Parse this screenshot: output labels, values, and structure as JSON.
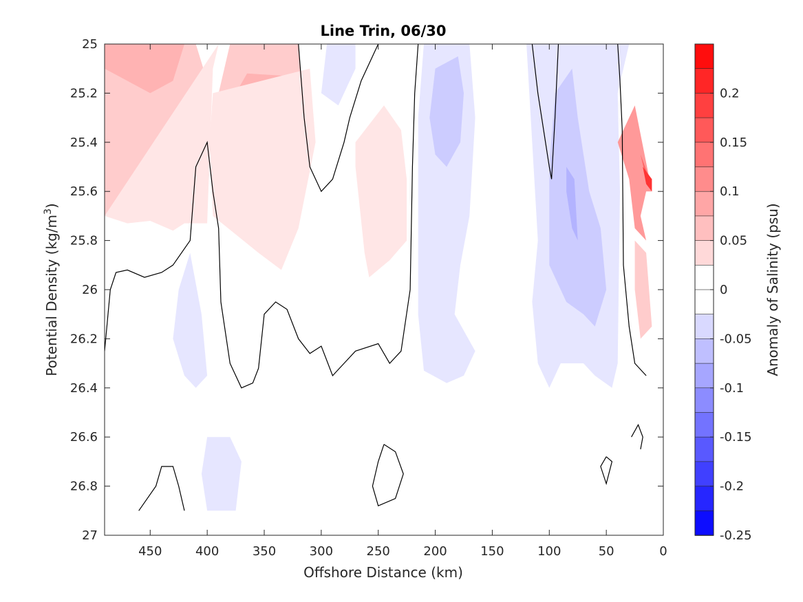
{
  "chart_data": {
    "type": "contour",
    "title": "Line Trin, 06/30",
    "xlabel": "Offshore Distance (km)",
    "ylabel": {
      "text": "Potential Density (kg/m",
      "superscript": "3",
      "suffix": ")"
    },
    "xlim": [
      490,
      0
    ],
    "x_reversed": true,
    "ylim": [
      25,
      27
    ],
    "y_reversed": true,
    "x_ticks": [
      "450",
      "400",
      "350",
      "300",
      "250",
      "200",
      "150",
      "100",
      "50",
      "0"
    ],
    "y_ticks": [
      "25",
      "25.2",
      "25.4",
      "25.6",
      "25.8",
      "26",
      "26.2",
      "26.4",
      "26.6",
      "26.8",
      "27"
    ],
    "grid": false,
    "colorbar": {
      "label": "Anomaly of Salinity (psu)",
      "range": [
        -0.25,
        0.25
      ],
      "step": 0.025,
      "tick_values": [
        0.2,
        0.15,
        0.1,
        0.05,
        0,
        -0.05,
        -0.1,
        -0.15,
        -0.2,
        -0.25
      ],
      "tick_labels": [
        "0.2",
        "0.15",
        "0.1",
        "0.05",
        "0",
        "-0.05",
        "-0.1",
        "-0.15",
        "-0.2",
        "-0.25"
      ],
      "negative_color": "#0000ff",
      "positive_color": "#ff0000",
      "zero_color": "#ffffff"
    },
    "fills": [
      {
        "level": 0.05,
        "points": [
          [
            490,
            25
          ],
          [
            410,
            25
          ],
          [
            400,
            25.15
          ],
          [
            410,
            25.4
          ],
          [
            420,
            25.55
          ],
          [
            440,
            25.58
          ],
          [
            455,
            25.55
          ],
          [
            470,
            25.65
          ],
          [
            490,
            25.7
          ]
        ]
      },
      {
        "level": 0.075,
        "points": [
          [
            490,
            25
          ],
          [
            420,
            25
          ],
          [
            430,
            25.15
          ],
          [
            450,
            25.2
          ],
          [
            470,
            25.15
          ],
          [
            490,
            25.1
          ]
        ]
      },
      {
        "level": 0.025,
        "points": [
          [
            490,
            25.7
          ],
          [
            470,
            25.73
          ],
          [
            450,
            25.72
          ],
          [
            430,
            25.76
          ],
          [
            420,
            25.73
          ],
          [
            400,
            25.73
          ],
          [
            395,
            25.1
          ],
          [
            390,
            25
          ]
        ]
      },
      {
        "level": 0.05,
        "points": [
          [
            380,
            25
          ],
          [
            320,
            25
          ],
          [
            315,
            25.3
          ],
          [
            325,
            25.55
          ],
          [
            340,
            25.65
          ],
          [
            360,
            25.68
          ],
          [
            385,
            25.7
          ],
          [
            395,
            25.3
          ]
        ]
      },
      {
        "level": 0.075,
        "points": [
          [
            365,
            25.12
          ],
          [
            330,
            25.13
          ],
          [
            325,
            25.35
          ],
          [
            340,
            25.5
          ],
          [
            360,
            25.48
          ],
          [
            375,
            25.4
          ],
          [
            375,
            25.2
          ]
        ]
      },
      {
        "level": 0.025,
        "points": [
          [
            310,
            25.1
          ],
          [
            305,
            25.4
          ],
          [
            320,
            25.75
          ],
          [
            335,
            25.92
          ],
          [
            355,
            25.85
          ],
          [
            395,
            25.7
          ],
          [
            398,
            25.4
          ],
          [
            395,
            25.2
          ]
        ]
      },
      {
        "level": 0.025,
        "points": [
          [
            245,
            25.25
          ],
          [
            270,
            25.4
          ],
          [
            270,
            25.5
          ],
          [
            262,
            25.85
          ],
          [
            258,
            25.95
          ],
          [
            240,
            25.88
          ],
          [
            225,
            25.8
          ],
          [
            225,
            25.55
          ],
          [
            230,
            25.35
          ]
        ]
      },
      {
        "level": 0.025,
        "points": [
          [
            110,
            25
          ],
          [
            100,
            25
          ],
          [
            95,
            25.05
          ],
          [
            100,
            25.15
          ],
          [
            110,
            25.1
          ]
        ]
      },
      {
        "level": -0.025,
        "points": [
          [
            295,
            25
          ],
          [
            270,
            25
          ],
          [
            270,
            25.1
          ],
          [
            285,
            25.25
          ],
          [
            300,
            25.2
          ]
        ]
      },
      {
        "level": -0.025,
        "points": [
          [
            210,
            25
          ],
          [
            170,
            25
          ],
          [
            165,
            25.3
          ],
          [
            170,
            25.7
          ],
          [
            178,
            25.9
          ],
          [
            183,
            26.1
          ],
          [
            165,
            26.25
          ],
          [
            175,
            26.35
          ],
          [
            190,
            26.38
          ],
          [
            210,
            26.33
          ],
          [
            215,
            26.1
          ],
          [
            215,
            25.6
          ],
          [
            215,
            25.3
          ]
        ]
      },
      {
        "level": -0.05,
        "points": [
          [
            200,
            25.1
          ],
          [
            180,
            25.05
          ],
          [
            175,
            25.2
          ],
          [
            178,
            25.4
          ],
          [
            190,
            25.5
          ],
          [
            200,
            25.45
          ],
          [
            205,
            25.3
          ]
        ]
      },
      {
        "level": -0.025,
        "points": [
          [
            150,
            25
          ],
          [
            120,
            25
          ],
          [
            115,
            25.4
          ],
          [
            110,
            25.8
          ],
          [
            115,
            26.05
          ],
          [
            110,
            26.3
          ],
          [
            100,
            26.4
          ],
          [
            90,
            26.3
          ],
          [
            70,
            26.3
          ],
          [
            60,
            26.35
          ],
          [
            45,
            26.4
          ],
          [
            40,
            26.3
          ],
          [
            38,
            25.6
          ],
          [
            40,
            25.2
          ],
          [
            30,
            25
          ],
          [
            100,
            25
          ]
        ]
      },
      {
        "level": -0.05,
        "points": [
          [
            95,
            25.2
          ],
          [
            80,
            25.1
          ],
          [
            75,
            25.3
          ],
          [
            65,
            25.6
          ],
          [
            55,
            25.75
          ],
          [
            50,
            26
          ],
          [
            60,
            26.15
          ],
          [
            70,
            26.1
          ],
          [
            85,
            26.05
          ],
          [
            100,
            25.9
          ],
          [
            100,
            25.5
          ]
        ]
      },
      {
        "level": -0.075,
        "points": [
          [
            85,
            25.5
          ],
          [
            78,
            25.55
          ],
          [
            75,
            25.8
          ],
          [
            80,
            25.75
          ],
          [
            85,
            25.6
          ]
        ]
      },
      {
        "level": -0.025,
        "points": [
          [
            415,
            25.85
          ],
          [
            405,
            26.1
          ],
          [
            400,
            26.35
          ],
          [
            410,
            26.4
          ],
          [
            420,
            26.35
          ],
          [
            430,
            26.2
          ],
          [
            425,
            26.0
          ]
        ]
      },
      {
        "level": -0.025,
        "points": [
          [
            400,
            26.6
          ],
          [
            380,
            26.6
          ],
          [
            370,
            26.7
          ],
          [
            375,
            26.9
          ],
          [
            400,
            26.9
          ],
          [
            405,
            26.75
          ]
        ]
      },
      {
        "level": 0.1,
        "points": [
          [
            25,
            25.25
          ],
          [
            40,
            25.4
          ],
          [
            30,
            25.55
          ],
          [
            25,
            25.75
          ],
          [
            15,
            25.8
          ],
          [
            20,
            25.7
          ],
          [
            15,
            25.6
          ],
          [
            10,
            25.6
          ]
        ]
      },
      {
        "level": 0.15,
        "points": [
          [
            20,
            25.45
          ],
          [
            12,
            25.55
          ],
          [
            10,
            25.6
          ],
          [
            15,
            25.55
          ]
        ]
      },
      {
        "level": 0.2,
        "points": [
          [
            18,
            25.5
          ],
          [
            10,
            25.55
          ],
          [
            10,
            25.6
          ],
          [
            15,
            25.57
          ]
        ]
      },
      {
        "level": 0.05,
        "points": [
          [
            25,
            25.8
          ],
          [
            15,
            25.85
          ],
          [
            10,
            26.15
          ],
          [
            20,
            26.2
          ],
          [
            25,
            26.0
          ]
        ]
      }
    ],
    "zero_contours": [
      [
        [
          490,
          26.25
        ],
        [
          485,
          26.0
        ],
        [
          480,
          25.93
        ],
        [
          470,
          25.92
        ],
        [
          455,
          25.95
        ],
        [
          440,
          25.93
        ],
        [
          430,
          25.9
        ],
        [
          415,
          25.8
        ],
        [
          410,
          25.5
        ],
        [
          400,
          25.4
        ],
        [
          395,
          25.6
        ],
        [
          390,
          25.75
        ],
        [
          388,
          26.05
        ],
        [
          380,
          26.3
        ],
        [
          370,
          26.4
        ],
        [
          360,
          26.38
        ],
        [
          355,
          26.32
        ],
        [
          350,
          26.1
        ],
        [
          340,
          26.05
        ],
        [
          330,
          26.08
        ],
        [
          320,
          26.2
        ],
        [
          310,
          26.26
        ],
        [
          300,
          26.23
        ],
        [
          290,
          26.35
        ],
        [
          280,
          26.3
        ],
        [
          270,
          26.25
        ],
        [
          250,
          26.22
        ],
        [
          240,
          26.3
        ],
        [
          230,
          26.25
        ],
        [
          222,
          26.0
        ],
        [
          220,
          25.5
        ],
        [
          218,
          25.2
        ],
        [
          215,
          25.0
        ]
      ],
      [
        [
          320,
          25
        ],
        [
          315,
          25.3
        ],
        [
          310,
          25.5
        ],
        [
          300,
          25.6
        ],
        [
          290,
          25.55
        ],
        [
          280,
          25.4
        ],
        [
          275,
          25.3
        ],
        [
          265,
          25.15
        ],
        [
          255,
          25.05
        ],
        [
          250,
          25
        ]
      ],
      [
        [
          115,
          25
        ],
        [
          110,
          25.2
        ],
        [
          100,
          25.5
        ],
        [
          98,
          25.55
        ],
        [
          95,
          25.3
        ],
        [
          92,
          25
        ]
      ],
      [
        [
          40,
          25
        ],
        [
          38,
          25.15
        ],
        [
          36,
          25.35
        ],
        [
          35,
          25.9
        ],
        [
          30,
          26.15
        ],
        [
          25,
          26.3
        ],
        [
          15,
          26.35
        ]
      ],
      [
        [
          460,
          26.9
        ],
        [
          445,
          26.8
        ],
        [
          440,
          26.72
        ],
        [
          430,
          26.72
        ],
        [
          425,
          26.8
        ],
        [
          420,
          26.9
        ]
      ],
      [
        [
          245,
          26.63
        ],
        [
          235,
          26.66
        ],
        [
          228,
          26.75
        ],
        [
          235,
          26.85
        ],
        [
          250,
          26.88
        ],
        [
          255,
          26.8
        ],
        [
          250,
          26.7
        ],
        [
          245,
          26.63
        ]
      ],
      [
        [
          50,
          26.68
        ],
        [
          45,
          26.7
        ],
        [
          50,
          26.79
        ],
        [
          55,
          26.72
        ],
        [
          50,
          26.68
        ]
      ],
      [
        [
          28,
          26.6
        ],
        [
          22,
          26.55
        ],
        [
          18,
          26.6
        ],
        [
          20,
          26.65
        ]
      ]
    ]
  }
}
